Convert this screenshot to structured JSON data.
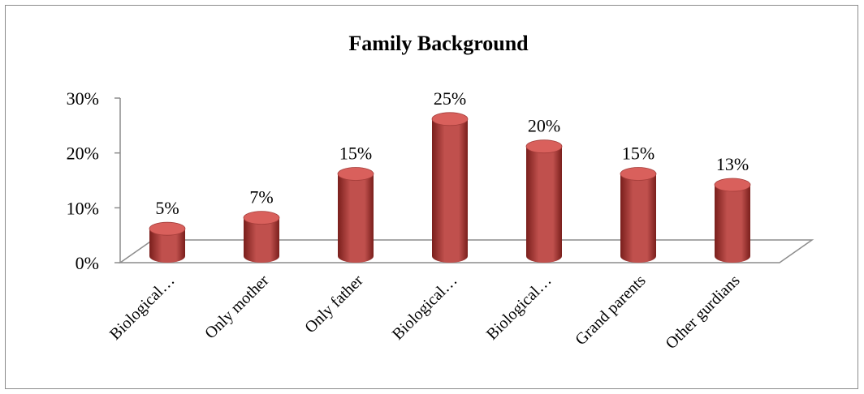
{
  "chart_data": {
    "type": "bar",
    "title": "Family Background",
    "xlabel": "",
    "ylabel": "",
    "categories": [
      "Biological…",
      "Only mother",
      "Only father",
      "Biological…",
      "Biological…",
      "Grand parents",
      "Other gurdians"
    ],
    "values": [
      5,
      7,
      15,
      25,
      20,
      15,
      13
    ],
    "data_labels": [
      "5%",
      "7%",
      "15%",
      "25%",
      "20%",
      "15%",
      "13%"
    ],
    "y_ticks": [
      "0%",
      "10%",
      "20%",
      "30%"
    ],
    "ylim": [
      0,
      30
    ],
    "legend": "none",
    "grid": false,
    "bar_style": "3d-cylinder",
    "colors": {
      "bar": "#c0504d",
      "bar_dark": "#7a1f1c",
      "bar_top": "#d9605c",
      "axis": "#8c8c8c"
    }
  }
}
